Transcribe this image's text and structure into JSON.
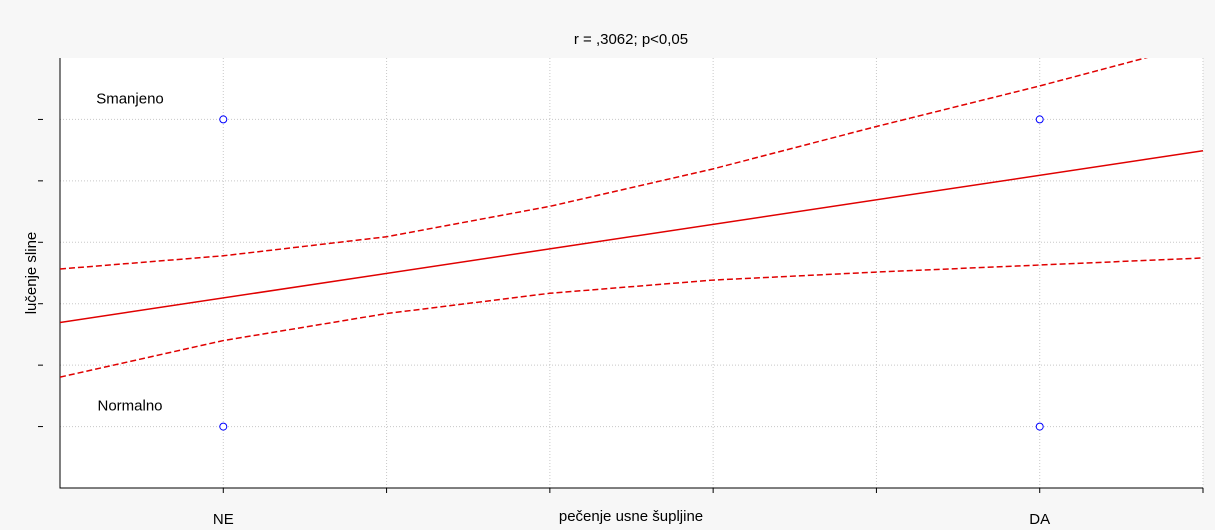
{
  "chart_data": {
    "type": "scatter",
    "title": "r = ,3062; p<0,05",
    "x_label": "pečenje usne šupljine",
    "y_label": "lučenje sline",
    "xlim": [
      -0.2,
      1.2
    ],
    "ylim": [
      -0.2,
      1.2
    ],
    "xticks": [
      0,
      0.2,
      0.4,
      0.6,
      0.8,
      1,
      1.2
    ],
    "yticks": [
      0,
      0.2,
      0.4,
      0.6,
      0.8,
      1
    ],
    "xlabels": [
      {
        "value": 0,
        "label": "NE"
      },
      {
        "value": 1,
        "label": "DA"
      }
    ],
    "ylabels": [
      {
        "value": 1,
        "label": "Smanjeno"
      },
      {
        "value": 0,
        "label": "Normalno"
      }
    ],
    "grid": true,
    "points": {
      "color": "#0000ff",
      "x": [
        0,
        0,
        1,
        1
      ],
      "values": [
        0,
        1,
        0,
        1
      ]
    },
    "series": [
      {
        "color": "#e00000",
        "style": "solid",
        "x": [
          -0.2,
          1.2
        ],
        "values": [
          0.339,
          0.898
        ]
      },
      {
        "color": "#e00000",
        "style": "dashed",
        "x": [
          -0.2,
          0,
          0.2,
          0.4,
          0.6,
          0.8,
          1,
          1.2
        ],
        "values": [
          0.513,
          0.556,
          0.618,
          0.717,
          0.839,
          0.977,
          1.109,
          1.25
        ]
      },
      {
        "color": "#e00000",
        "style": "dashed",
        "x": [
          -0.2,
          0,
          0.2,
          0.4,
          0.6,
          0.8,
          1,
          1.2
        ],
        "values": [
          0.161,
          0.28,
          0.368,
          0.434,
          0.477,
          0.503,
          0.526,
          0.549
        ]
      }
    ]
  }
}
